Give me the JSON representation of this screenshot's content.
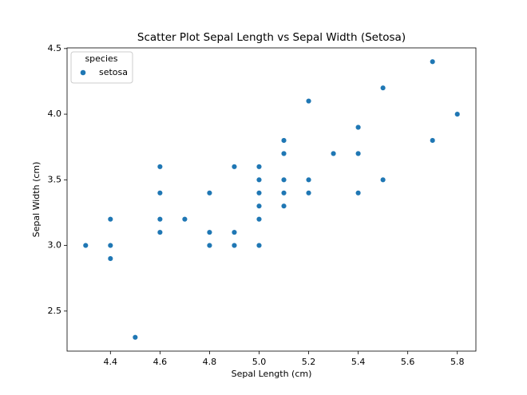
{
  "chart_data": {
    "type": "scatter",
    "title": "Scatter Plot Sepal Length vs Sepal Width (Setosa)",
    "x_label": "Sepal Length (cm)",
    "y_label": "Sepal Width (cm)",
    "legend_title": "species",
    "legend_position": "upper left",
    "series": [
      {
        "name": "setosa",
        "color": "#1f77b4",
        "x": [
          4.3,
          4.4,
          4.4,
          4.4,
          4.5,
          4.6,
          4.6,
          4.6,
          4.6,
          4.7,
          4.8,
          4.8,
          4.8,
          4.9,
          4.9,
          4.9,
          5.0,
          5.0,
          5.0,
          5.0,
          5.0,
          5.0,
          5.1,
          5.1,
          5.1,
          5.1,
          5.1,
          5.2,
          5.2,
          5.2,
          5.3,
          5.4,
          5.4,
          5.4,
          5.5,
          5.5,
          5.7,
          5.7,
          5.8
        ],
        "values": [
          3.0,
          3.2,
          3.0,
          2.9,
          2.3,
          3.6,
          3.4,
          3.2,
          3.1,
          3.2,
          3.4,
          3.1,
          3.0,
          3.6,
          3.1,
          3.0,
          3.6,
          3.5,
          3.4,
          3.3,
          3.2,
          3.0,
          3.8,
          3.7,
          3.5,
          3.4,
          3.3,
          4.1,
          3.5,
          3.4,
          3.7,
          3.9,
          3.7,
          3.4,
          4.2,
          3.5,
          4.4,
          3.8,
          4.0
        ]
      }
    ],
    "xlim": [
      4.225,
      5.875
    ],
    "xticks": [
      4.4,
      4.6,
      4.8,
      {
        "value": 5,
        "label": "5.0"
      },
      5.2,
      5.4,
      5.6,
      5.8
    ],
    "ylim": [
      2.195,
      4.505
    ],
    "yticks": [
      2.5,
      {
        "value": 3,
        "label": "3.0"
      },
      3.5,
      {
        "value": 4,
        "label": "4.0"
      },
      4.5
    ]
  }
}
